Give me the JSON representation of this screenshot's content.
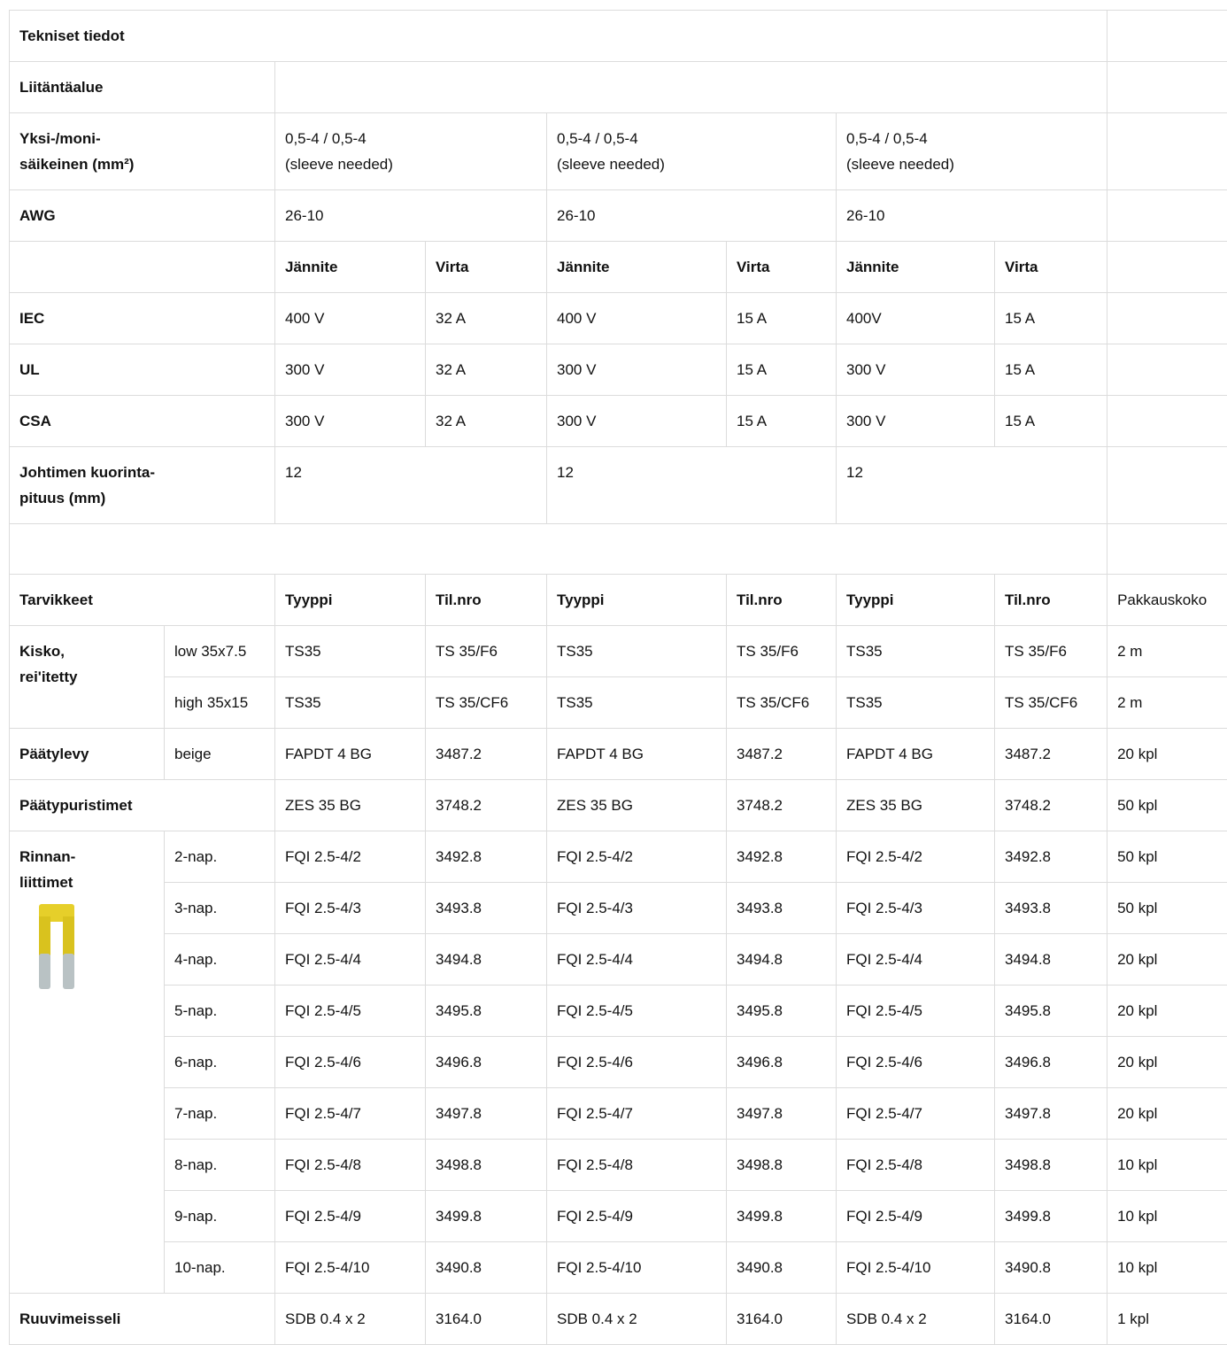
{
  "table": {
    "rows": [
      [
        "Tekniset tiedot"
      ],
      [
        "Liitäntäalue"
      ],
      [
        "Yksi-/moni-\nsäikeinen (mm²)",
        "0,5-4 / 0,5-4\n(sleeve needed)",
        "0,5-4 / 0,5-4\n(sleeve needed)",
        "0,5-4 / 0,5-4\n(sleeve needed)"
      ],
      [
        "AWG",
        "26-10",
        "26-10",
        "26-10"
      ],
      [
        "Jännite",
        "Virta",
        "Jännite",
        "Virta",
        "Jännite",
        "Virta"
      ],
      [
        "IEC",
        "400 V",
        "32 A",
        "400 V",
        "15 A",
        "400V",
        "15 A"
      ],
      [
        "UL",
        "300 V",
        "32 A",
        "300 V",
        "15 A",
        "300 V",
        "15 A"
      ],
      [
        "CSA",
        "300 V",
        "32 A",
        "300 V",
        "15 A",
        "300 V",
        "15 A"
      ],
      [
        "Johtimen kuorinta-\npituus (mm)",
        "12",
        "12",
        "12"
      ],
      [],
      [
        "Tarvikkeet",
        "Tyyppi",
        "Til.nro",
        "Tyyppi",
        "Til.nro",
        "Tyyppi",
        "Til.nro",
        "Pakkauskoko"
      ],
      [
        "Kisko,\nrei'itetty",
        "low 35x7.5",
        "TS35",
        "TS 35/F6",
        "TS35",
        "TS 35/F6",
        "TS35",
        "TS 35/F6",
        "2 m"
      ],
      [
        "high 35x15",
        "TS35",
        "TS 35/CF6",
        "TS35",
        "TS 35/CF6",
        "TS35",
        "TS 35/CF6",
        "2 m"
      ],
      [
        "Päätylevy",
        "beige",
        "FAPDT 4 BG",
        "3487.2",
        "FAPDT 4 BG",
        "3487.2",
        "FAPDT 4 BG",
        "3487.2",
        "20 kpl"
      ],
      [
        "Päätypuristimet",
        "ZES 35 BG",
        "3748.2",
        "ZES 35 BG",
        "3748.2",
        "ZES 35 BG",
        "3748.2",
        "50 kpl"
      ],
      [
        "Rinnan-\nliittimet",
        "2-nap.",
        "FQI 2.5-4/2",
        "3492.8",
        "FQI 2.5-4/2",
        "3492.8",
        "FQI 2.5-4/2",
        "3492.8",
        "50 kpl"
      ],
      [
        "3-nap.",
        "FQI 2.5-4/3",
        "3493.8",
        "FQI 2.5-4/3",
        "3493.8",
        "FQI 2.5-4/3",
        "3493.8",
        "50 kpl"
      ],
      [
        "4-nap.",
        "FQI 2.5-4/4",
        "3494.8",
        "FQI 2.5-4/4",
        "3494.8",
        "FQI 2.5-4/4",
        "3494.8",
        "20 kpl"
      ],
      [
        "5-nap.",
        "FQI 2.5-4/5",
        "3495.8",
        "FQI 2.5-4/5",
        "3495.8",
        "FQI 2.5-4/5",
        "3495.8",
        "20 kpl"
      ],
      [
        "6-nap.",
        "FQI 2.5-4/6",
        "3496.8",
        "FQI 2.5-4/6",
        "3496.8",
        "FQI 2.5-4/6",
        "3496.8",
        "20 kpl"
      ],
      [
        "7-nap.",
        "FQI 2.5-4/7",
        "3497.8",
        "FQI 2.5-4/7",
        "3497.8",
        "FQI 2.5-4/7",
        "3497.8",
        "20 kpl"
      ],
      [
        "8-nap.",
        "FQI 2.5-4/8",
        "3498.8",
        "FQI 2.5-4/8",
        "3498.8",
        "FQI 2.5-4/8",
        "3498.8",
        "10 kpl"
      ],
      [
        "9-nap.",
        "FQI 2.5-4/9",
        "3499.8",
        "FQI 2.5-4/9",
        "3499.8",
        "FQI 2.5-4/9",
        "3499.8",
        "10 kpl"
      ],
      [
        "10-nap.",
        "FQI 2.5-4/10",
        "3490.8",
        "FQI 2.5-4/10",
        "3490.8",
        "FQI 2.5-4/10",
        "3490.8",
        "10 kpl"
      ],
      [
        "Ruuvimeisseli",
        "SDB 0.4 x 2",
        "3164.0",
        "SDB 0.4 x 2",
        "3164.0",
        "SDB 0.4 x 2",
        "3164.0",
        "1 kpl"
      ]
    ]
  }
}
